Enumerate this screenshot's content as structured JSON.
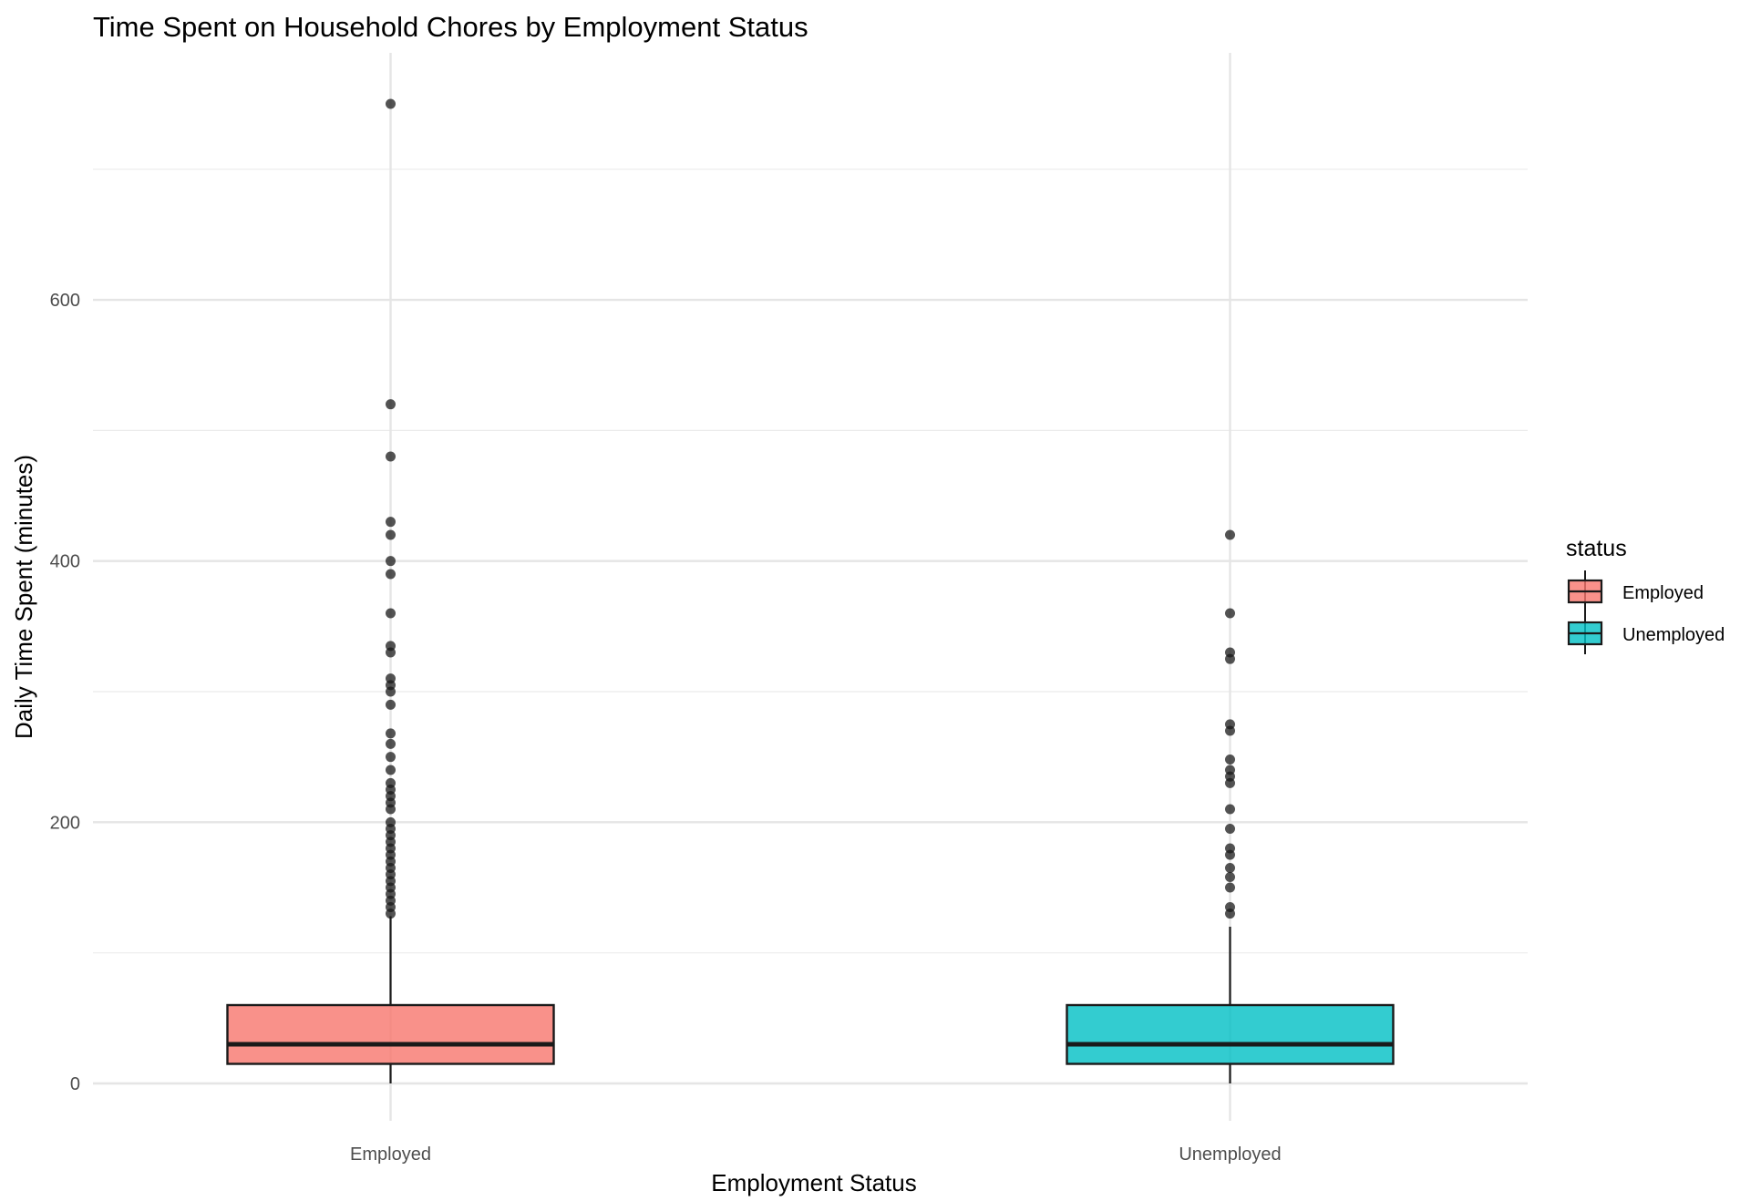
{
  "chart_data": {
    "type": "box",
    "title": "Time Spent on Household Chores by Employment Status",
    "xlabel": "Employment Status",
    "ylabel": "Daily Time Spent (minutes)",
    "categories": [
      "Employed",
      "Unemployed"
    ],
    "ylim": [
      -15,
      790
    ],
    "yticks": [
      0,
      200,
      400,
      600
    ],
    "yticks_minor": [
      100,
      300,
      500,
      700
    ],
    "grid": true,
    "legend": {
      "title": "status",
      "position": "right",
      "entries": [
        "Employed",
        "Unemployed"
      ]
    },
    "colors": {
      "Employed": "#F8766D",
      "Unemployed": "#00BFC4"
    },
    "series": [
      {
        "category": "Employed",
        "whisker_low": 0,
        "q1": 15,
        "median": 30,
        "q3": 60,
        "whisker_high": 128,
        "outliers": [
          750,
          520,
          480,
          430,
          420,
          400,
          390,
          360,
          335,
          330,
          310,
          305,
          300,
          290,
          268,
          260,
          250,
          240,
          230,
          225,
          220,
          215,
          210,
          200,
          195,
          190,
          185,
          180,
          175,
          170,
          165,
          160,
          155,
          150,
          145,
          140,
          135,
          130
        ]
      },
      {
        "category": "Unemployed",
        "whisker_low": 0,
        "q1": 15,
        "median": 30,
        "q3": 60,
        "whisker_high": 120,
        "outliers": [
          420,
          360,
          330,
          325,
          275,
          270,
          248,
          240,
          235,
          230,
          210,
          195,
          180,
          175,
          165,
          158,
          150,
          135,
          130
        ]
      }
    ]
  }
}
